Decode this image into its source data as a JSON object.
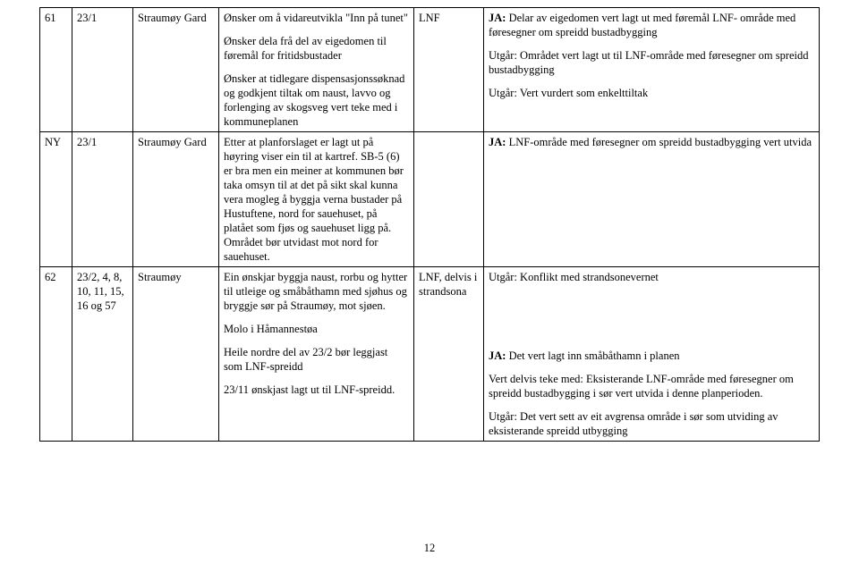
{
  "rows": [
    {
      "c0": "61",
      "c1": "23/1",
      "c2": "Straumøy Gard",
      "c3": [
        "Ønsker om å vidareutvikla \"Inn på tunet\"",
        "Ønsker dela frå del av eigedomen til føremål for fritidsbustader",
        "Ønsker at tidlegare dispensasjonssøknad og godkjent tiltak om naust, lavvo og forlenging av skogsveg vert teke med i kommuneplanen"
      ],
      "c4": "LNF",
      "c5": [
        {
          "b": "JA:",
          "t": " Delar av eigedomen vert lagt ut med føremål LNF- område med føresegner om spreidd bustadbygging"
        },
        {
          "b": "",
          "t": "Utgår: Området vert lagt ut til LNF-område med føresegner om spreidd bustadbygging"
        },
        {
          "b": "",
          "t": "Utgår: Vert vurdert som enkelttiltak"
        }
      ]
    },
    {
      "c0": "NY",
      "c1": "23/1",
      "c2": "Straumøy Gard",
      "c3": [
        "Etter at planforslaget er lagt ut på høyring viser ein til at kartref. SB-5 (6) er bra men ein meiner at kommunen bør taka omsyn til at det på sikt skal kunna vera mogleg å byggja verna bustader på Hustuftene, nord for sauehuset, på platået som fjøs og sauehuset ligg på. Området bør utvidast mot nord for sauehuset."
      ],
      "c4": "",
      "c5": [
        {
          "b": "JA:",
          "t": " LNF-område med føresegner om spreidd bustadbygging vert utvida"
        }
      ]
    },
    {
      "c0": "62",
      "c1": "23/2, 4, 8, 10, 11, 15, 16 og 57",
      "c2": "Straumøy",
      "c3": [
        "Ein ønskjar byggja naust, rorbu og hytter til utleige og småbåthamn med sjøhus og bryggje sør på Straumøy, mot sjøen.",
        "Molo i Håmannestøa",
        "Heile nordre del av 23/2 bør leggjast som LNF-spreidd",
        "23/11 ønskjast lagt ut til LNF-spreidd."
      ],
      "c4": "LNF, delvis i strandsona",
      "c5": [
        {
          "b": "",
          "t": "Utgår: Konflikt med strandsonevernet"
        },
        {
          "b": "JA:",
          "t": " Det vert lagt inn småbåthamn i planen"
        },
        {
          "b": "",
          "t": "Vert delvis teke med: Eksisterande LNF-område med føresegner om spreidd bustadbygging i sør vert utvida i denne planperioden."
        },
        {
          "b": "",
          "t": "Utgår: Det vert sett av eit avgrensa område i sør som utviding av eksisterande spreidd utbygging"
        }
      ],
      "c5gap": true
    }
  ],
  "pagenum": "12"
}
